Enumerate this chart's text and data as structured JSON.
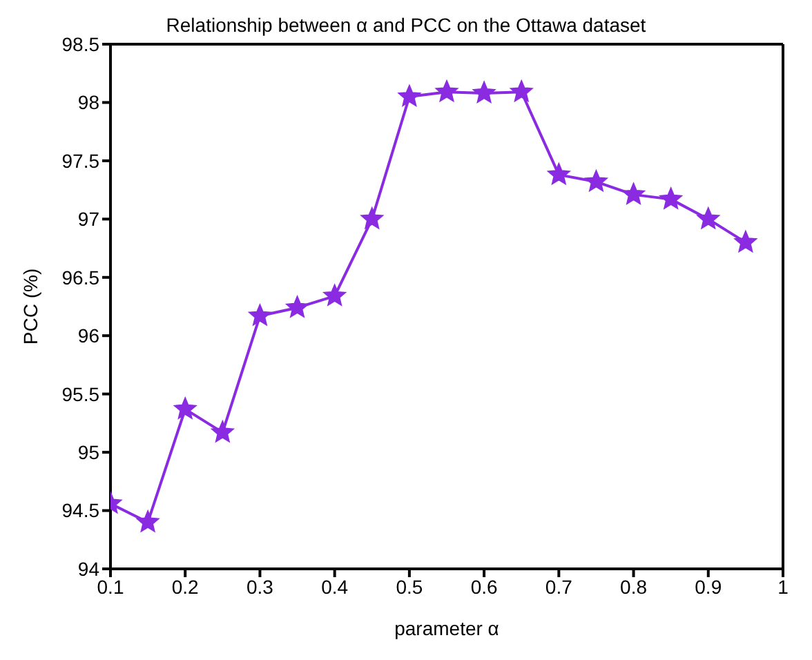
{
  "chart_data": {
    "type": "line",
    "title": "Relationship between α and PCC on the Ottawa dataset",
    "xlabel": "parameter α",
    "ylabel": "PCC (%)",
    "x": [
      0.1,
      0.15,
      0.2,
      0.25,
      0.3,
      0.35,
      0.4,
      0.45,
      0.5,
      0.55,
      0.6,
      0.65,
      0.7,
      0.75,
      0.8,
      0.85,
      0.9,
      0.95
    ],
    "series": [
      {
        "color": "#8a2be2",
        "values": [
          94.56,
          94.4,
          95.37,
          95.17,
          96.17,
          96.24,
          96.34,
          97.0,
          98.05,
          98.09,
          98.08,
          98.09,
          97.38,
          97.32,
          97.21,
          97.17,
          97.0,
          96.8
        ]
      }
    ],
    "xlim": [
      0.1,
      1
    ],
    "xticks": [
      0.1,
      0.2,
      0.3,
      0.4,
      0.5,
      0.6,
      0.7,
      0.8,
      0.9,
      1
    ],
    "ylim": [
      94,
      98.5
    ],
    "yticks": [
      94,
      94.5,
      95,
      95.5,
      96,
      96.5,
      97,
      97.5,
      98,
      98.5
    ],
    "marker": "star",
    "line_style": "solid",
    "grid": false,
    "legend": false
  }
}
